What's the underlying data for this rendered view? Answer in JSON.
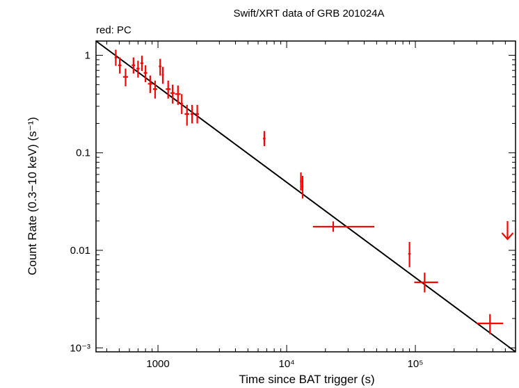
{
  "chart_data": {
    "type": "scatter",
    "title": "Swift/XRT data of GRB 201024A",
    "subtitle": "red: PC",
    "xlabel": "Time since BAT trigger (s)",
    "ylabel": "Count Rate (0.3−10 keV) (s⁻¹)",
    "xscale": "log",
    "yscale": "log",
    "xlim": [
      330,
      600000
    ],
    "ylim": [
      0.00091,
      1.4
    ],
    "x_tick_labels": [
      {
        "value": 1000,
        "label": "1000"
      },
      {
        "value": 10000,
        "label": "10⁴"
      },
      {
        "value": 100000,
        "label": "10⁵"
      }
    ],
    "y_tick_labels": [
      {
        "value": 1,
        "label": "1"
      },
      {
        "value": 0.1,
        "label": "0.1"
      },
      {
        "value": 0.01,
        "label": "0.01"
      },
      {
        "value": 0.001,
        "label": "10⁻³"
      }
    ],
    "series": [
      {
        "name": "PC",
        "color": "#ff0000",
        "points": [
          {
            "x": 470,
            "xlo": 460,
            "xhi": 482,
            "y": 0.95,
            "ylo": 0.78,
            "yhi": 1.14
          },
          {
            "x": 505,
            "xlo": 490,
            "xhi": 520,
            "y": 0.79,
            "ylo": 0.65,
            "yhi": 0.95
          },
          {
            "x": 560,
            "xlo": 535,
            "xhi": 585,
            "y": 0.6,
            "ylo": 0.48,
            "yhi": 0.73
          },
          {
            "x": 645,
            "xlo": 625,
            "xhi": 665,
            "y": 0.79,
            "ylo": 0.65,
            "yhi": 0.95
          },
          {
            "x": 700,
            "xlo": 680,
            "xhi": 720,
            "y": 0.73,
            "ylo": 0.59,
            "yhi": 0.88
          },
          {
            "x": 750,
            "xlo": 730,
            "xhi": 770,
            "y": 0.83,
            "ylo": 0.69,
            "yhi": 0.99
          },
          {
            "x": 800,
            "xlo": 775,
            "xhi": 825,
            "y": 0.66,
            "ylo": 0.53,
            "yhi": 0.79
          },
          {
            "x": 870,
            "xlo": 835,
            "xhi": 905,
            "y": 0.51,
            "ylo": 0.41,
            "yhi": 0.62
          },
          {
            "x": 950,
            "xlo": 915,
            "xhi": 985,
            "y": 0.45,
            "ylo": 0.36,
            "yhi": 0.55
          },
          {
            "x": 1040,
            "xlo": 1015,
            "xhi": 1065,
            "y": 0.77,
            "ylo": 0.62,
            "yhi": 0.92
          },
          {
            "x": 1090,
            "xlo": 1070,
            "xhi": 1110,
            "y": 0.63,
            "ylo": 0.51,
            "yhi": 0.76
          },
          {
            "x": 1200,
            "xlo": 1150,
            "xhi": 1250,
            "y": 0.45,
            "ylo": 0.36,
            "yhi": 0.55
          },
          {
            "x": 1300,
            "xlo": 1250,
            "xhi": 1350,
            "y": 0.41,
            "ylo": 0.32,
            "yhi": 0.5
          },
          {
            "x": 1430,
            "xlo": 1360,
            "xhi": 1500,
            "y": 0.4,
            "ylo": 0.31,
            "yhi": 0.49
          },
          {
            "x": 1530,
            "xlo": 1500,
            "xhi": 1560,
            "y": 0.32,
            "ylo": 0.25,
            "yhi": 0.4
          },
          {
            "x": 1680,
            "xlo": 1610,
            "xhi": 1750,
            "y": 0.25,
            "ylo": 0.19,
            "yhi": 0.31
          },
          {
            "x": 1840,
            "xlo": 1790,
            "xhi": 1890,
            "y": 0.25,
            "ylo": 0.2,
            "yhi": 0.31
          },
          {
            "x": 2020,
            "xlo": 1960,
            "xhi": 2080,
            "y": 0.25,
            "ylo": 0.2,
            "yhi": 0.31
          },
          {
            "x": 6700,
            "xlo": 6550,
            "xhi": 6850,
            "y": 0.14,
            "ylo": 0.117,
            "yhi": 0.167
          },
          {
            "x": 12900,
            "xlo": 12700,
            "xhi": 13100,
            "y": 0.051,
            "ylo": 0.041,
            "yhi": 0.063
          },
          {
            "x": 13300,
            "xlo": 13100,
            "xhi": 13500,
            "y": 0.045,
            "ylo": 0.034,
            "yhi": 0.058
          },
          {
            "x": 23000,
            "xlo": 16000,
            "xhi": 48000,
            "y": 0.0175,
            "ylo": 0.0155,
            "yhi": 0.0198
          },
          {
            "x": 90000,
            "xlo": 88000,
            "xhi": 92000,
            "y": 0.0092,
            "ylo": 0.0067,
            "yhi": 0.0122
          },
          {
            "x": 118000,
            "xlo": 98000,
            "xhi": 150000,
            "y": 0.0047,
            "ylo": 0.0037,
            "yhi": 0.0059
          },
          {
            "x": 380000,
            "xlo": 300000,
            "xhi": 480000,
            "y": 0.00178,
            "ylo": 0.00138,
            "yhi": 0.00222
          }
        ],
        "upper_limits": [
          {
            "x": 520000,
            "y": 0.013
          }
        ]
      }
    ],
    "fit_line": {
      "color": "#000000",
      "points": [
        [
          330,
          1.4
        ],
        [
          600000,
          0.00091
        ]
      ]
    }
  }
}
